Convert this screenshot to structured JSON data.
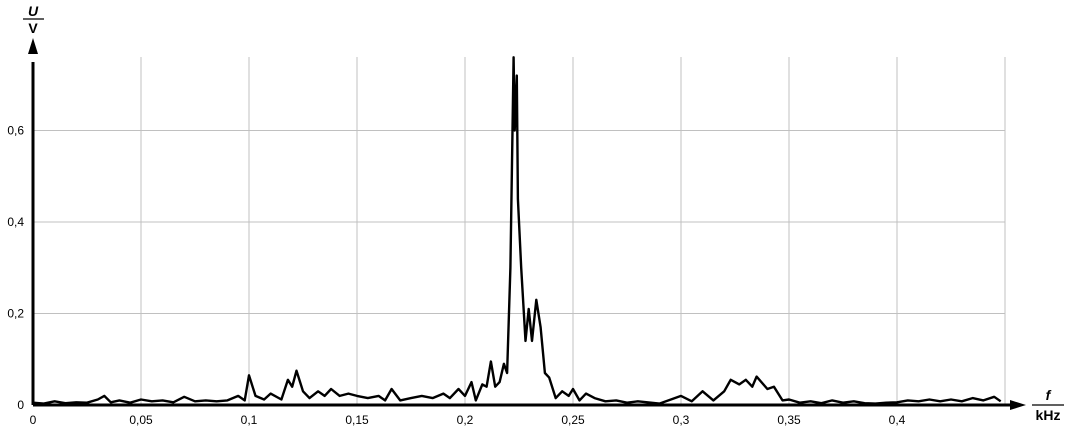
{
  "chart_data": {
    "type": "line",
    "title": "",
    "ylabel": {
      "symbol": "U",
      "unit": "V"
    },
    "xlabel": {
      "symbol": "f",
      "unit": "kHz"
    },
    "xlim": [
      0,
      0.449
    ],
    "ylim": [
      0,
      0.76
    ],
    "grid": true,
    "line_color": "#000000",
    "grid_color": "#c0c0c0",
    "x_ticks": [
      0,
      0.05,
      0.1,
      0.15,
      0.2,
      0.25,
      0.3,
      0.35,
      0.4
    ],
    "x_tick_labels": [
      "0",
      "0,05",
      "0,1",
      "0,15",
      "0,2",
      "0,25",
      "0,3",
      "0,35",
      "0,4"
    ],
    "y_ticks": [
      0,
      0.2,
      0.4,
      0.6
    ],
    "y_tick_labels": [
      "0",
      "0,2",
      "0,4",
      "0,6"
    ],
    "series": [
      {
        "x": [
          0,
          0.005,
          0.01,
          0.015,
          0.02,
          0.025,
          0.03,
          0.033,
          0.036,
          0.04,
          0.045,
          0.05,
          0.055,
          0.06,
          0.065,
          0.07,
          0.075,
          0.08,
          0.085,
          0.09,
          0.095,
          0.098,
          0.1,
          0.103,
          0.107,
          0.11,
          0.115,
          0.118,
          0.12,
          0.122,
          0.125,
          0.128,
          0.132,
          0.135,
          0.138,
          0.142,
          0.146,
          0.15,
          0.155,
          0.16,
          0.163,
          0.166,
          0.17,
          0.175,
          0.18,
          0.185,
          0.19,
          0.193,
          0.197,
          0.2,
          0.203,
          0.205,
          0.208,
          0.21,
          0.212,
          0.214,
          0.216,
          0.218,
          0.2195,
          0.221,
          0.222,
          0.2225,
          0.223,
          0.224,
          0.2245,
          0.226,
          0.228,
          0.2295,
          0.231,
          0.233,
          0.235,
          0.237,
          0.239,
          0.242,
          0.245,
          0.248,
          0.25,
          0.253,
          0.256,
          0.26,
          0.265,
          0.27,
          0.275,
          0.28,
          0.29,
          0.3,
          0.305,
          0.31,
          0.315,
          0.32,
          0.323,
          0.327,
          0.33,
          0.333,
          0.335,
          0.34,
          0.343,
          0.347,
          0.35,
          0.355,
          0.36,
          0.365,
          0.37,
          0.375,
          0.38,
          0.385,
          0.39,
          0.395,
          0.4,
          0.405,
          0.41,
          0.415,
          0.42,
          0.425,
          0.43,
          0.435,
          0.44,
          0.445,
          0.448
        ],
        "y": [
          0.005,
          0.003,
          0.008,
          0.004,
          0.006,
          0.005,
          0.012,
          0.02,
          0.006,
          0.01,
          0.005,
          0.012,
          0.008,
          0.01,
          0.006,
          0.018,
          0.008,
          0.01,
          0.008,
          0.01,
          0.02,
          0.01,
          0.065,
          0.02,
          0.012,
          0.025,
          0.012,
          0.055,
          0.04,
          0.075,
          0.03,
          0.015,
          0.03,
          0.02,
          0.035,
          0.02,
          0.025,
          0.02,
          0.015,
          0.02,
          0.01,
          0.035,
          0.01,
          0.015,
          0.02,
          0.015,
          0.025,
          0.015,
          0.035,
          0.02,
          0.05,
          0.01,
          0.045,
          0.04,
          0.095,
          0.04,
          0.05,
          0.09,
          0.07,
          0.3,
          0.6,
          0.76,
          0.6,
          0.72,
          0.45,
          0.3,
          0.14,
          0.21,
          0.14,
          0.23,
          0.17,
          0.07,
          0.06,
          0.015,
          0.03,
          0.02,
          0.035,
          0.01,
          0.025,
          0.015,
          0.008,
          0.01,
          0.005,
          0.008,
          0.003,
          0.02,
          0.008,
          0.03,
          0.01,
          0.03,
          0.055,
          0.045,
          0.055,
          0.04,
          0.062,
          0.035,
          0.04,
          0.01,
          0.012,
          0.005,
          0.008,
          0.004,
          0.01,
          0.005,
          0.008,
          0.004,
          0.003,
          0.005,
          0.006,
          0.01,
          0.008,
          0.012,
          0.008,
          0.012,
          0.008,
          0.015,
          0.01,
          0.018,
          0.008
        ]
      }
    ]
  }
}
